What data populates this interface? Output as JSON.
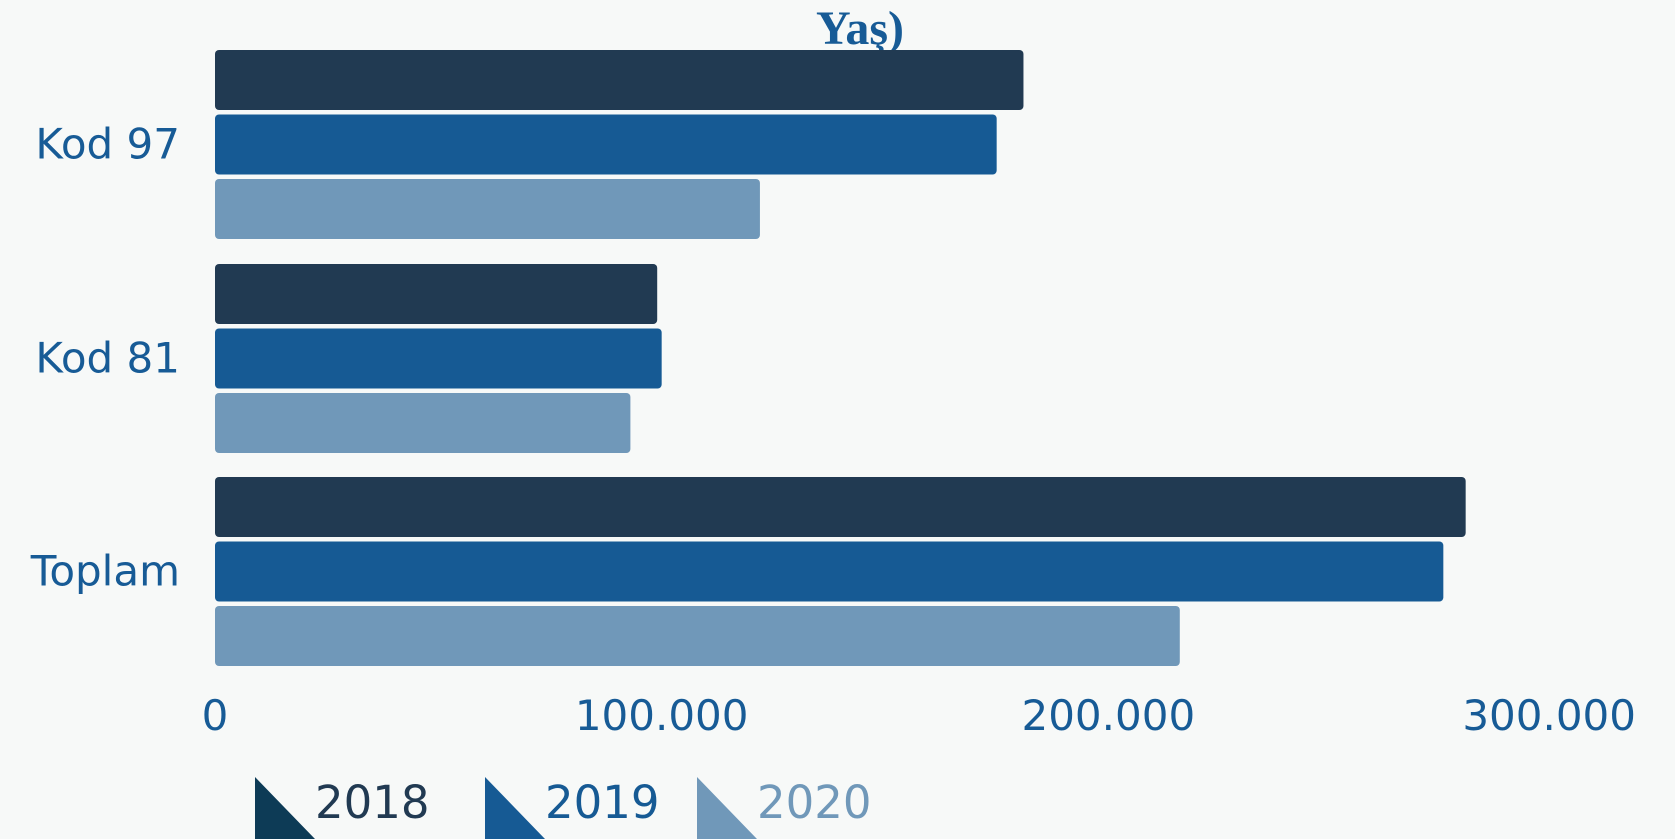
{
  "chart_data": {
    "type": "bar",
    "orientation": "horizontal",
    "title_visible": "Yaş)",
    "categories": [
      "Kod 97",
      "Kod 81",
      "Toplam"
    ],
    "series": [
      {
        "name": "2018",
        "color": "#213a52",
        "values": [
          181000,
          99000,
          280000
        ]
      },
      {
        "name": "2019",
        "color": "#165a94",
        "values": [
          175000,
          100000,
          275000
        ]
      },
      {
        "name": "2020",
        "color": "#7098b9",
        "values": [
          122000,
          93000,
          216000
        ]
      }
    ],
    "xlim": [
      0,
      300000
    ],
    "x_ticks": [
      0,
      100000,
      200000,
      300000
    ],
    "x_tick_labels": [
      "0",
      "100.000",
      "200.000",
      "300.000"
    ],
    "legend_position": "bottom",
    "legend_marker_colors": [
      "#0d3b56",
      "#165a94",
      "#7098b9"
    ],
    "legend_label_colors": [
      "#213a52",
      "#165a94",
      "#7098b9"
    ],
    "grid": false
  }
}
